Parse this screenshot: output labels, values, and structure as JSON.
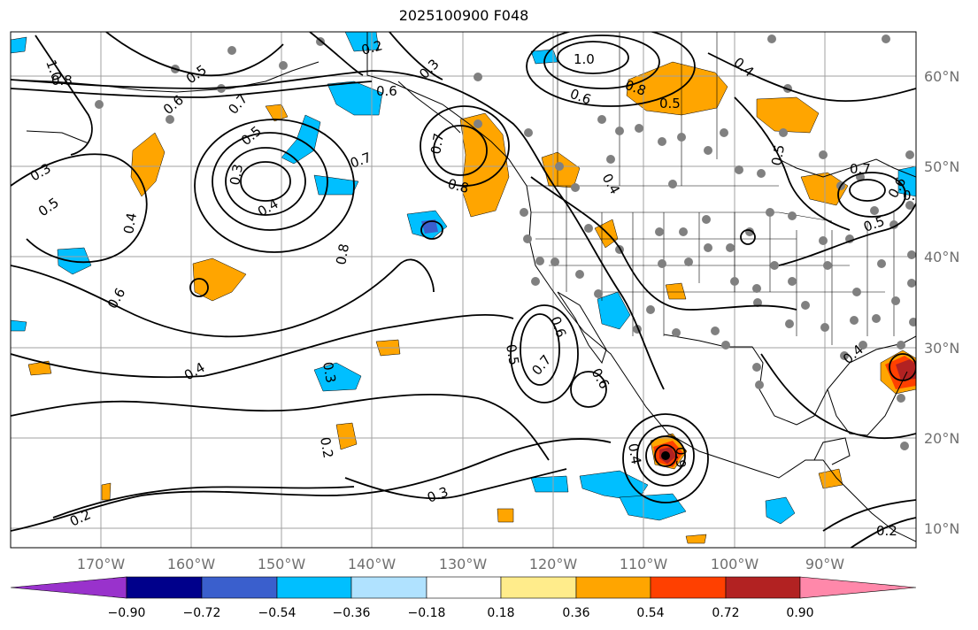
{
  "map": {
    "title": "2025100900 F048",
    "lon_labels": [
      "170°W",
      "160°W",
      "150°W",
      "140°W",
      "130°W",
      "120°W",
      "110°W",
      "100°W",
      "90°W"
    ],
    "lat_labels": [
      "60°N",
      "50°N",
      "40°N",
      "30°N",
      "20°N",
      "10°N"
    ],
    "contour_labels": [
      "1.0",
      "0.8",
      "0.5",
      "0.6",
      "0.7",
      "0.5",
      "0.3",
      "0.4",
      "0.3",
      "0.5",
      "0.4",
      "0.6",
      "0.8",
      "0.7",
      "0.4",
      "0.2",
      "0.3",
      "0.6",
      "0.7",
      "1.0",
      "0.8",
      "0.5",
      "0.6",
      "0.4",
      "0.5",
      "0.7",
      "0.5",
      "0.6",
      "0.8",
      "0.5",
      "0.7",
      "0.6",
      "0.3",
      "0.2",
      "0.3",
      "0.4",
      "0.6",
      "0.4",
      "0.9",
      "0.2",
      "0.3",
      "0.2",
      "0.4"
    ],
    "colors": {
      "land_outline": "#000000",
      "grid": "#a0a0a0",
      "station_dot": "#808080",
      "contour": "#000000"
    }
  },
  "colorbar": {
    "tick_labels": [
      "−0.90",
      "−0.72",
      "−0.54",
      "−0.36",
      "−0.18",
      "0.18",
      "0.36",
      "0.54",
      "0.72",
      "0.90"
    ],
    "colors": [
      "#9932cc",
      "#00008b",
      "#3a5fcd",
      "#00bfff",
      "#b0e2ff",
      "#ffffff",
      "#ffec8b",
      "#ffa500",
      "#ff4000",
      "#b22222",
      "#ff88aa"
    ]
  }
}
